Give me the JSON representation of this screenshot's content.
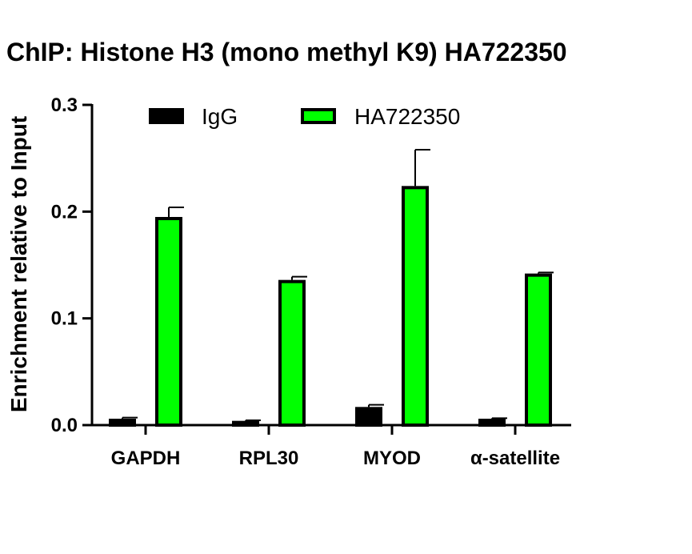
{
  "chart_data": {
    "type": "bar",
    "title": "ChIP: Histone H3 (mono methyl K9) HA722350",
    "ylabel": "Enrichment relative to Input",
    "xlabel": "",
    "categories": [
      "GAPDH",
      "RPL30",
      "MYOD",
      "α-satellite"
    ],
    "series": [
      {
        "name": "IgG",
        "color": "#000000",
        "values": [
          0.006,
          0.004,
          0.017,
          0.006
        ],
        "errors": [
          0.001,
          0.0005,
          0.002,
          0.0005
        ]
      },
      {
        "name": "HA722350",
        "color": "#00ff00",
        "values": [
          0.195,
          0.136,
          0.224,
          0.142
        ],
        "errors": [
          0.009,
          0.003,
          0.034,
          0.001
        ]
      }
    ],
    "ylim": [
      0,
      0.3
    ],
    "yticks": [
      "0.0",
      "0.1",
      "0.2",
      "0.3"
    ],
    "legend": "top",
    "grid": false
  }
}
